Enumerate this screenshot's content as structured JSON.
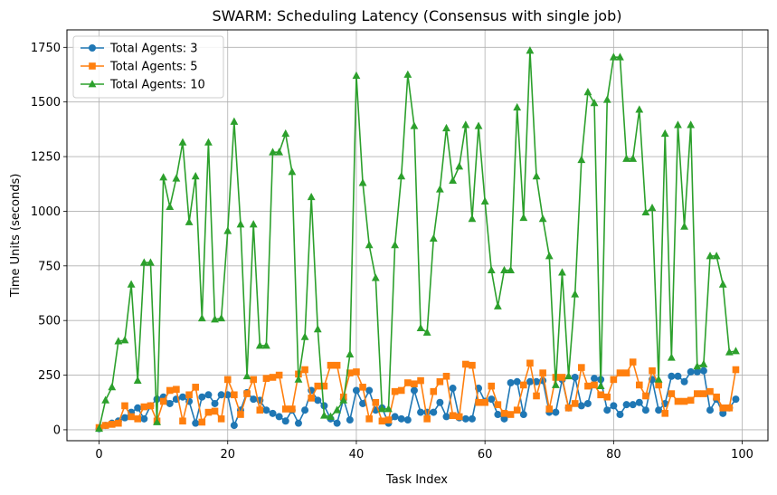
{
  "chart_data": {
    "type": "line",
    "title": "SWARM: Scheduling Latency (Consensus with single job)",
    "xlabel": "Task Index",
    "ylabel": "Time Units (seconds)",
    "xlim": [
      -5,
      104
    ],
    "ylim": [
      -50,
      1830
    ],
    "xticks": [
      0,
      20,
      40,
      60,
      80,
      100
    ],
    "yticks": [
      0,
      250,
      500,
      750,
      1000,
      1250,
      1500,
      1750
    ],
    "grid": true,
    "legend_position": "top-left",
    "series": [
      {
        "name": "Total Agents: 3",
        "color": "#1f77b4",
        "marker": "circle",
        "values": [
          5,
          20,
          30,
          40,
          55,
          80,
          100,
          50,
          110,
          140,
          150,
          120,
          140,
          150,
          130,
          30,
          150,
          160,
          120,
          160,
          160,
          20,
          90,
          170,
          140,
          135,
          90,
          75,
          60,
          40,
          90,
          30,
          90,
          180,
          135,
          110,
          50,
          30,
          140,
          45,
          180,
          120,
          180,
          90,
          100,
          30,
          60,
          50,
          45,
          180,
          80,
          80,
          80,
          125,
          60,
          190,
          55,
          50,
          50,
          190,
          130,
          140,
          70,
          50,
          215,
          220,
          70,
          220,
          220,
          225,
          80,
          80,
          230,
          100,
          240,
          110,
          120,
          235,
          230,
          90,
          110,
          70,
          115,
          115,
          125,
          90,
          230,
          90,
          120,
          245,
          245,
          220,
          265,
          265,
          270,
          90,
          140,
          75,
          100,
          140
        ]
      },
      {
        "name": "Total Agents: 5",
        "color": "#ff7f0e",
        "marker": "square",
        "values": [
          10,
          20,
          25,
          30,
          110,
          60,
          50,
          105,
          110,
          40,
          130,
          180,
          185,
          40,
          160,
          195,
          35,
          80,
          85,
          50,
          230,
          160,
          70,
          165,
          230,
          90,
          235,
          240,
          250,
          95,
          95,
          255,
          275,
          145,
          200,
          200,
          295,
          295,
          150,
          260,
          265,
          195,
          50,
          125,
          40,
          45,
          175,
          180,
          215,
          210,
          225,
          50,
          175,
          220,
          245,
          65,
          60,
          300,
          295,
          125,
          125,
          200,
          115,
          75,
          70,
          90,
          205,
          305,
          155,
          260,
          95,
          240,
          240,
          100,
          120,
          285,
          200,
          205,
          160,
          150,
          230,
          260,
          260,
          310,
          205,
          155,
          270,
          205,
          75,
          165,
          130,
          130,
          135,
          165,
          165,
          175,
          150,
          100,
          100,
          275
        ]
      },
      {
        "name": "Total Agents: 10",
        "color": "#2ca02c",
        "marker": "triangle",
        "values": [
          5,
          135,
          195,
          405,
          410,
          665,
          225,
          765,
          765,
          35,
          1155,
          1020,
          1150,
          1315,
          950,
          1160,
          510,
          1315,
          505,
          510,
          910,
          1410,
          940,
          245,
          940,
          385,
          385,
          1270,
          1270,
          1355,
          1180,
          230,
          425,
          1065,
          460,
          65,
          60,
          90,
          135,
          345,
          1620,
          1130,
          845,
          695,
          95,
          95,
          845,
          1160,
          1625,
          1390,
          465,
          445,
          875,
          1100,
          1380,
          1140,
          1205,
          1395,
          965,
          1390,
          1045,
          730,
          565,
          730,
          730,
          1475,
          970,
          1735,
          1160,
          965,
          795,
          205,
          720,
          245,
          620,
          1235,
          1545,
          1495,
          200,
          1510,
          1705,
          1705,
          1240,
          1240,
          1465,
          995,
          1015,
          230,
          1355,
          330,
          1395,
          930,
          1395,
          290,
          300,
          795,
          795,
          665,
          355,
          360
        ]
      }
    ]
  }
}
